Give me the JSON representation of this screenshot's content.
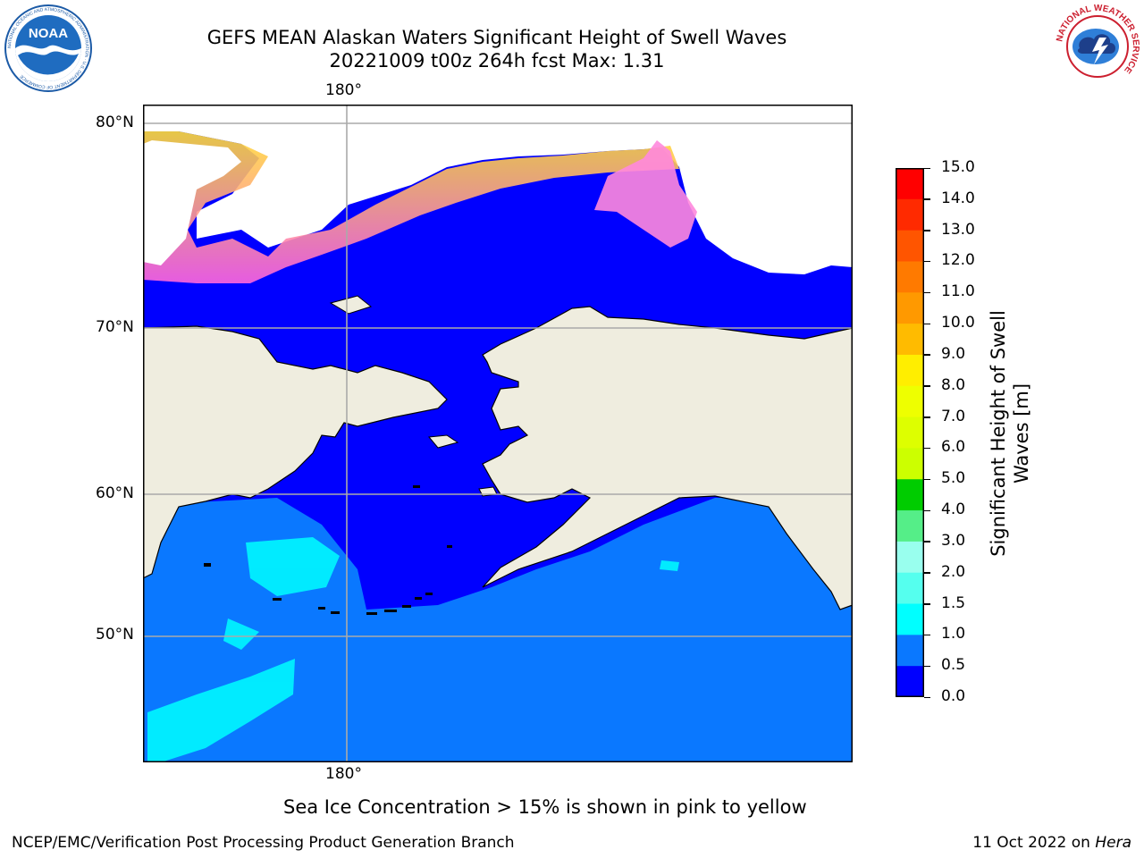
{
  "title": {
    "line1": "GEFS MEAN Alaskan Waters Significant Height of Swell Waves",
    "line2": "20221009 t00z 264h fcst   Max: 1.31"
  },
  "map": {
    "lon_labels": {
      "top": "180°",
      "bottom": "180°"
    },
    "lat_labels": [
      "80°N",
      "70°N",
      "60°N",
      "50°N"
    ],
    "colors": {
      "ocean_low": "#0000ff",
      "ocean_mid": "#0a78ff",
      "ocean_high": "#00ffff",
      "land": "#efeddf",
      "ice_pink": "#ff66dd",
      "ice_yellow": "#ffdd33",
      "gridline": "#aaaaaa"
    }
  },
  "colorbar": {
    "label_line1": "Significant Height of Swell",
    "label_line2": "Waves [m]",
    "ticks": [
      "15.0",
      "14.0",
      "13.0",
      "12.0",
      "11.0",
      "10.0",
      "9.0",
      "8.0",
      "7.0",
      "6.0",
      "5.0",
      "4.0",
      "3.0",
      "2.0",
      "1.5",
      "1.0",
      "0.5",
      "0.0"
    ],
    "colors_top_to_bottom": [
      "#ff0000",
      "#ff2a00",
      "#ff5500",
      "#ff7a00",
      "#ff9900",
      "#ffbb00",
      "#ffee00",
      "#eeff00",
      "#ddff00",
      "#ccff00",
      "#77ee00",
      "#22dd00",
      "#00cc00",
      "#55ee88",
      "#99ffee",
      "#55ffee",
      "#00ffff",
      "#0a78ff",
      "#0000ff"
    ]
  },
  "footer": {
    "note": "Sea Ice Concentration > 15% is shown in pink to yellow",
    "credit": "NCEP/EMC/Verification Post Processing Product Generation Branch",
    "date": "11 Oct 2022 on",
    "host": "Hera"
  },
  "logos": {
    "noaa": "NOAA",
    "noaa_ring": "NATIONAL OCEANIC AND ATMOSPHERIC ADMINISTRATION · U.S. DEPARTMENT OF COMMERCE",
    "nws_ring": "NATIONAL WEATHER SERVICE"
  }
}
